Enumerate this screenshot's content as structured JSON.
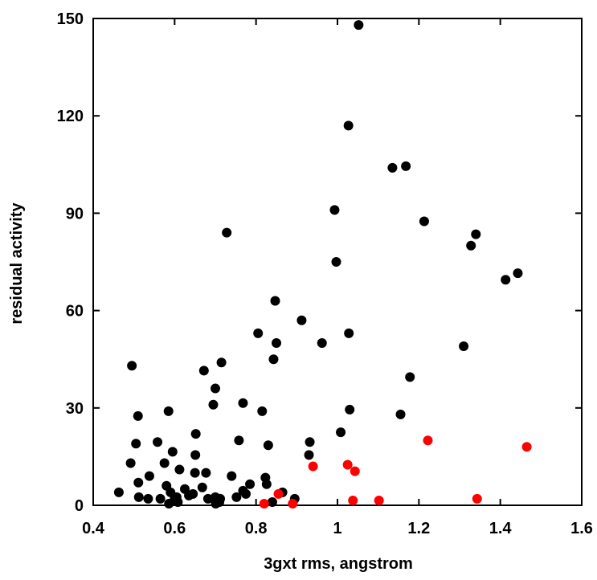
{
  "chart_data": {
    "type": "scatter",
    "title": "",
    "xlabel": "3gxt rms, angstrom",
    "ylabel": "residual activity",
    "xlim": [
      0.4,
      1.6
    ],
    "ylim": [
      0,
      150
    ],
    "xticks": [
      0.4,
      0.6,
      0.8,
      1.0,
      1.2,
      1.4,
      1.6
    ],
    "xtick_labels": [
      "0.4",
      "0.6",
      "0.8",
      "1",
      "1.2",
      "1.4",
      "1.6"
    ],
    "yticks": [
      0,
      30,
      60,
      90,
      120,
      150
    ],
    "ytick_labels": [
      "0",
      "30",
      "60",
      "90",
      "120",
      "150"
    ],
    "grid": false,
    "series": [
      {
        "color": "#000000",
        "points": [
          [
            0.463,
            4
          ],
          [
            0.492,
            13
          ],
          [
            0.495,
            43
          ],
          [
            0.505,
            19
          ],
          [
            0.51,
            27.5
          ],
          [
            0.511,
            7
          ],
          [
            0.512,
            2.5
          ],
          [
            0.535,
            2
          ],
          [
            0.538,
            9
          ],
          [
            0.558,
            19.5
          ],
          [
            0.565,
            2
          ],
          [
            0.575,
            13
          ],
          [
            0.58,
            6
          ],
          [
            0.585,
            29
          ],
          [
            0.586,
            0.5
          ],
          [
            0.59,
            4
          ],
          [
            0.595,
            16.5
          ],
          [
            0.6,
            2
          ],
          [
            0.605,
            2.5
          ],
          [
            0.608,
            1
          ],
          [
            0.612,
            11
          ],
          [
            0.625,
            5
          ],
          [
            0.635,
            3
          ],
          [
            0.645,
            3.5
          ],
          [
            0.65,
            10
          ],
          [
            0.651,
            15.5
          ],
          [
            0.652,
            22
          ],
          [
            0.668,
            5.5
          ],
          [
            0.672,
            41.5
          ],
          [
            0.677,
            10
          ],
          [
            0.682,
            2
          ],
          [
            0.695,
            31
          ],
          [
            0.7,
            2.5
          ],
          [
            0.7,
            36
          ],
          [
            0.701,
            0.5
          ],
          [
            0.702,
            1.5
          ],
          [
            0.71,
            1
          ],
          [
            0.712,
            2
          ],
          [
            0.715,
            44
          ],
          [
            0.728,
            84
          ],
          [
            0.74,
            9
          ],
          [
            0.752,
            2.5
          ],
          [
            0.758,
            20
          ],
          [
            0.768,
            31.5
          ],
          [
            0.768,
            4.5
          ],
          [
            0.775,
            3.5
          ],
          [
            0.785,
            6.5
          ],
          [
            0.805,
            53
          ],
          [
            0.815,
            29
          ],
          [
            0.823,
            8.5
          ],
          [
            0.826,
            6.5
          ],
          [
            0.83,
            18.5
          ],
          [
            0.84,
            1
          ],
          [
            0.843,
            45
          ],
          [
            0.847,
            63
          ],
          [
            0.85,
            50
          ],
          [
            0.865,
            4
          ],
          [
            0.895,
            2
          ],
          [
            0.912,
            57
          ],
          [
            0.93,
            15.5
          ],
          [
            0.932,
            19.5
          ],
          [
            0.962,
            50
          ],
          [
            0.993,
            91
          ],
          [
            0.997,
            75
          ],
          [
            1.008,
            22.5
          ],
          [
            1.027,
            117
          ],
          [
            1.028,
            53
          ],
          [
            1.03,
            29.5
          ],
          [
            1.052,
            148
          ],
          [
            1.135,
            104
          ],
          [
            1.155,
            28
          ],
          [
            1.168,
            104.5
          ],
          [
            1.178,
            39.5
          ],
          [
            1.213,
            87.5
          ],
          [
            1.31,
            49
          ],
          [
            1.328,
            80
          ],
          [
            1.34,
            83.5
          ],
          [
            1.413,
            69.5
          ],
          [
            1.443,
            71.5
          ]
        ]
      },
      {
        "color": "#ff0000",
        "points": [
          [
            0.82,
            0.5
          ],
          [
            0.855,
            3.5
          ],
          [
            0.89,
            0.5
          ],
          [
            0.94,
            12
          ],
          [
            1.025,
            12.5
          ],
          [
            1.038,
            1.5
          ],
          [
            1.043,
            10.5
          ],
          [
            1.102,
            1.5
          ],
          [
            1.222,
            20
          ],
          [
            1.343,
            2
          ],
          [
            1.465,
            18
          ]
        ]
      }
    ]
  }
}
